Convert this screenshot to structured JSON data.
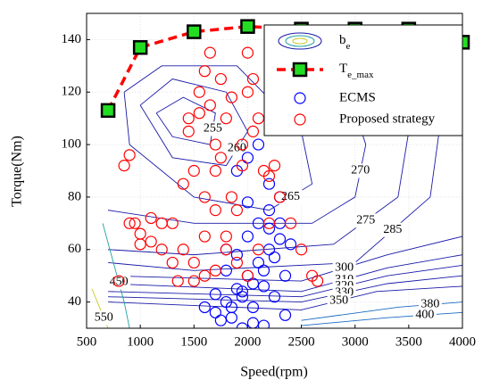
{
  "chart_data": {
    "type": "engine-map",
    "xlabel": "Speed(rpm)",
    "ylabel": "Torque(Nm)",
    "xlim": [
      500,
      4000
    ],
    "ylim": [
      30,
      150
    ],
    "xticks": [
      500,
      1000,
      1500,
      2000,
      2500,
      3000,
      3500,
      4000
    ],
    "yticks": [
      40,
      60,
      80,
      100,
      120,
      140
    ],
    "grid": true,
    "legend": "upper right",
    "contour_name": "b_e",
    "contours": [
      {
        "level": 255,
        "color": "#1a1aa8",
        "x": [
          1150,
          1400,
          1700,
          1650,
          1300,
          1150
        ],
        "y": [
          112,
          118,
          112,
          100,
          103,
          112
        ]
      },
      {
        "level": 260,
        "color": "#1a1aa8",
        "x": [
          1000,
          1300,
          1800,
          2000,
          1800,
          1300,
          1000
        ],
        "y": [
          115,
          125,
          120,
          105,
          92,
          95,
          115
        ]
      },
      {
        "level": 265,
        "color": "#1a1aa8",
        "x": [
          850,
          1200,
          1900,
          2500,
          2600,
          2200,
          1500,
          900,
          850
        ],
        "y": [
          120,
          130,
          130,
          105,
          85,
          75,
          80,
          100,
          120
        ]
      },
      {
        "level": 270,
        "color": "#1a1aa8",
        "x": [
          700,
          1500,
          2600,
          3000,
          3100,
          2900,
          2400
        ],
        "y": [
          75,
          70,
          70,
          80,
          100,
          125,
          140
        ]
      },
      {
        "level": 275,
        "color": "#1a1aa8",
        "x": [
          700,
          1500,
          2800,
          3400,
          3500,
          3300
        ],
        "y": [
          60,
          58,
          62,
          80,
          105,
          140
        ]
      },
      {
        "level": 285,
        "color": "#1a1aa8",
        "x": [
          700,
          1500,
          3000,
          3700,
          3800,
          3700
        ],
        "y": [
          55,
          52,
          55,
          80,
          110,
          145
        ]
      },
      {
        "level": 300,
        "color": "#1a1aa8",
        "x": [
          700,
          2500,
          3300,
          4000
        ],
        "y": [
          50,
          48,
          58,
          65
        ]
      },
      {
        "level": 310,
        "color": "#1a1aa8",
        "x": [
          700,
          2500,
          3300,
          4000
        ],
        "y": [
          47,
          44,
          53,
          58
        ]
      },
      {
        "level": 320,
        "color": "#1a1aa8",
        "x": [
          700,
          2500,
          3300,
          4000
        ],
        "y": [
          44,
          42,
          50,
          54
        ]
      },
      {
        "level": 330,
        "color": "#1a1aa8",
        "x": [
          700,
          2500,
          3300,
          4000
        ],
        "y": [
          42,
          40,
          47,
          50
        ]
      },
      {
        "level": 350,
        "color": "#1a1aa8",
        "x": [
          700,
          2500,
          3200,
          4000
        ],
        "y": [
          40,
          37,
          44,
          46
        ]
      },
      {
        "level": 380,
        "color": "#1a6ac0",
        "x": [
          2500,
          3400,
          4000
        ],
        "y": [
          33,
          38,
          40
        ]
      },
      {
        "level": 400,
        "color": "#1a6ac0",
        "x": [
          2500,
          3300,
          4000
        ],
        "y": [
          31,
          34,
          36
        ]
      },
      {
        "level": 450,
        "color": "#20a0a0",
        "x": [
          650,
          750,
          850,
          900
        ],
        "y": [
          70,
          55,
          40,
          30
        ]
      },
      {
        "level": 550,
        "color": "#c8c820",
        "x": [
          550,
          620,
          700
        ],
        "y": [
          45,
          38,
          30
        ]
      }
    ],
    "series": [
      {
        "name": "T_e_max",
        "color": "#ff0000",
        "marker_color": "#22dd22",
        "x": [
          700,
          1000,
          1500,
          2000,
          2500,
          3000,
          3500,
          4000
        ],
        "values": [
          113,
          137,
          143,
          145,
          144,
          144,
          144,
          139
        ]
      },
      {
        "name": "ECMS",
        "color": "#0000ff",
        "x": [
          1700,
          1750,
          1800,
          1850,
          1900,
          1950,
          2000,
          2050,
          2100,
          2150,
          2200,
          2250,
          2300,
          2350,
          1800,
          1900,
          2000,
          2100,
          2200,
          2300,
          1850,
          1950,
          2050,
          2150,
          2250,
          2350,
          1900,
          2000,
          2100,
          2200,
          2300,
          1950,
          2050,
          2150,
          1700,
          1800,
          2000,
          2200,
          2400,
          1600
        ],
        "values": [
          36,
          33,
          40,
          38,
          45,
          42,
          50,
          47,
          55,
          52,
          60,
          57,
          64,
          35,
          52,
          58,
          65,
          70,
          75,
          80,
          34,
          44,
          38,
          46,
          42,
          50,
          90,
          95,
          100,
          85,
          70,
          30,
          32,
          31,
          43,
          60,
          78,
          68,
          62,
          38
        ]
      },
      {
        "name": "Proposed strategy",
        "color": "#ff0000",
        "x": [
          800,
          850,
          900,
          950,
          1000,
          1100,
          1200,
          1300,
          1350,
          1400,
          1450,
          1500,
          1550,
          1600,
          1650,
          1700,
          1750,
          1800,
          1850,
          1900,
          1950,
          2000,
          2050,
          2100,
          2150,
          2200,
          2250,
          2300,
          2400,
          2500,
          2600,
          1400,
          1500,
          1600,
          1700,
          1800,
          1900,
          2000,
          2100,
          2200,
          1450,
          1550,
          1650,
          1750,
          1850,
          1950,
          2050,
          1600,
          1700,
          1800,
          2000,
          1500,
          1600,
          1700,
          1300,
          1200,
          1100,
          1000,
          900,
          2650
        ],
        "values": [
          48,
          92,
          96,
          70,
          62,
          72,
          70,
          70,
          48,
          85,
          110,
          90,
          120,
          128,
          135,
          100,
          95,
          65,
          80,
          75,
          92,
          135,
          125,
          110,
          90,
          88,
          92,
          80,
          70,
          60,
          50,
          60,
          55,
          65,
          75,
          60,
          55,
          50,
          60,
          70,
          105,
          112,
          115,
          125,
          118,
          100,
          105,
          80,
          90,
          110,
          120,
          48,
          50,
          52,
          55,
          60,
          63,
          66,
          70,
          48
        ]
      }
    ]
  }
}
